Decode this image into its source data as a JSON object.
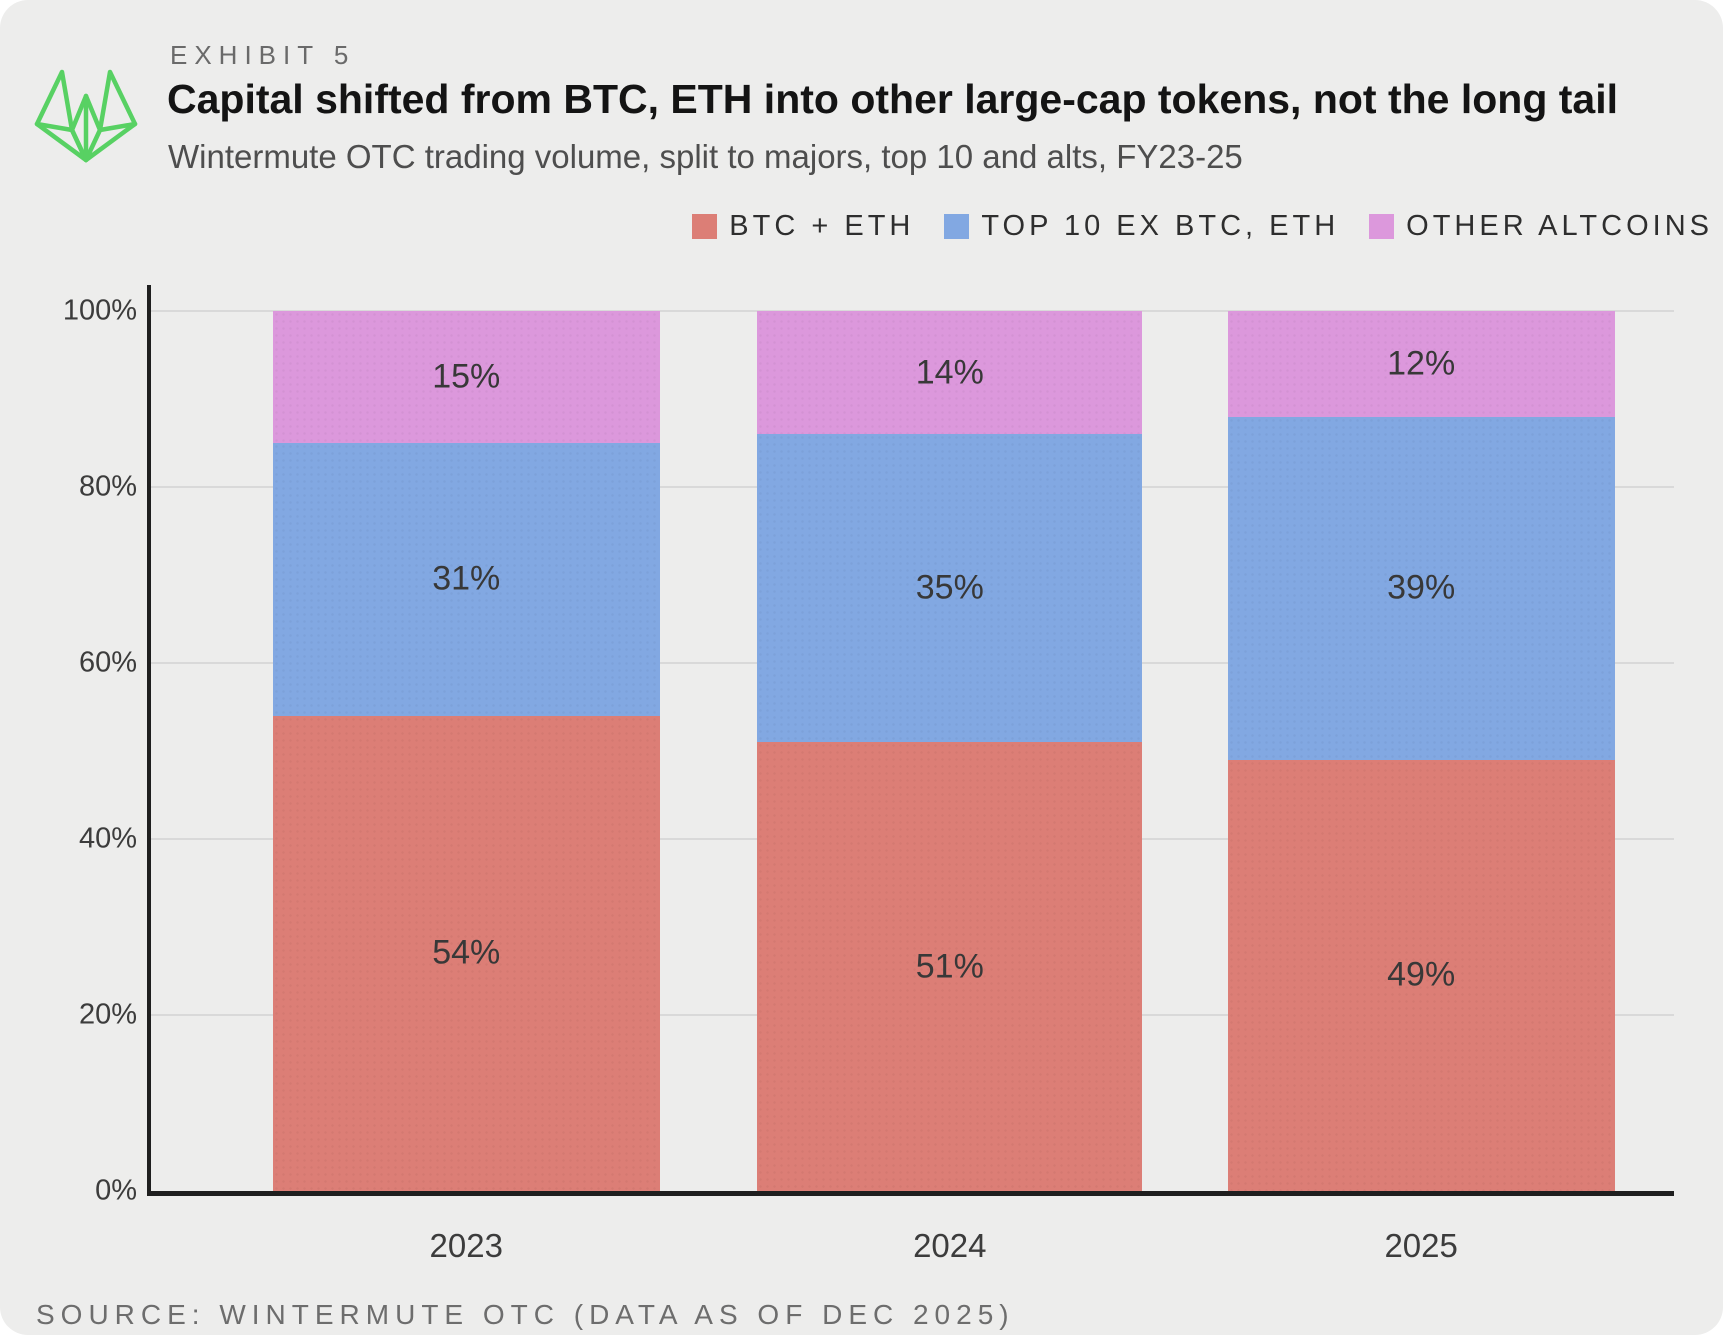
{
  "header": {
    "exhibit_label": "EXHIBIT 5",
    "title": "Capital shifted from BTC, ETH into other large-cap tokens, not the long tail",
    "subtitle": "Wintermute OTC trading volume, split to majors, top 10 and alts, FY23-25"
  },
  "branding": {
    "logo": "wintermute-logo",
    "logo_color": "#58d163"
  },
  "source_note": "SOURCE: WINTERMUTE OTC (DATA AS OF DEC 2025)",
  "colors": {
    "background": "#ededec",
    "gridline": "#d9d9d9",
    "axis": "#1f1f1f"
  },
  "chart_data": {
    "type": "bar",
    "stacked": true,
    "percent": true,
    "unit": "%",
    "title": "Capital shifted from BTC, ETH into other large-cap tokens, not the long tail",
    "subtitle": "Wintermute OTC trading volume, split to majors, top 10 and alts, FY23-25",
    "categories": [
      "2023",
      "2024",
      "2025"
    ],
    "series": [
      {
        "name": "BTC + ETH",
        "color": "#dc7e76",
        "values": [
          54,
          51,
          49
        ]
      },
      {
        "name": "TOP 10 EX BTC, ETH",
        "color": "#82a8e2",
        "values": [
          31,
          35,
          39
        ]
      },
      {
        "name": "OTHER ALTCOINS",
        "color": "#dc98dc",
        "values": [
          15,
          14,
          12
        ]
      }
    ],
    "xlabel": "",
    "ylabel": "",
    "ylim": [
      0,
      100
    ],
    "y_ticks": [
      "0%",
      "20%",
      "40%",
      "60%",
      "80%",
      "100%"
    ],
    "grid": true,
    "legend_position": "top-right"
  }
}
